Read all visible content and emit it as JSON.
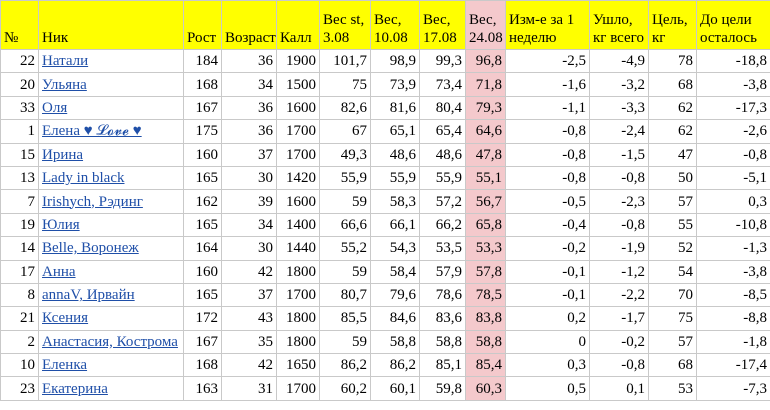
{
  "headers": {
    "num": "№",
    "nick": "Ник",
    "height": "Рост",
    "age": "Возраст",
    "cal": "Калл",
    "w_start": "Вес st, 3.08",
    "w_1008": "Вес, 10.08",
    "w_1708": "Вес, 17.08",
    "w_2408": "Вес, 24.08",
    "change_week": "Изм-е за 1 неделю",
    "lost_total": "Ушло, кг всего",
    "goal": "Цель, кг",
    "to_goal": "До цели осталось"
  },
  "rows": [
    {
      "num": "22",
      "nick": "Натали",
      "height": "184",
      "age": "36",
      "cal": "1900",
      "w_start": "101,7",
      "w_1008": "98,9",
      "w_1708": "99,3",
      "w_2408": "96,8",
      "change": "-2,5",
      "lost": "-4,9",
      "goal": "78",
      "to_goal": "-18,8"
    },
    {
      "num": "20",
      "nick": "Ульяна",
      "height": "168",
      "age": "34",
      "cal": "1500",
      "w_start": "75",
      "w_1008": "73,9",
      "w_1708": "73,4",
      "w_2408": "71,8",
      "change": "-1,6",
      "lost": "-3,2",
      "goal": "68",
      "to_goal": "-3,8"
    },
    {
      "num": "33",
      "nick": "Оля",
      "height": "167",
      "age": "36",
      "cal": "1600",
      "w_start": "82,6",
      "w_1008": "81,6",
      "w_1708": "80,4",
      "w_2408": "79,3",
      "change": "-1,1",
      "lost": "-3,3",
      "goal": "62",
      "to_goal": "-17,3"
    },
    {
      "num": "1",
      "nick": "Елена ♥ 𝓛𝓸𝓿𝓮 ♥",
      "height": "175",
      "age": "36",
      "cal": "1700",
      "w_start": "67",
      "w_1008": "65,1",
      "w_1708": "65,4",
      "w_2408": "64,6",
      "change": "-0,8",
      "lost": "-2,4",
      "goal": "62",
      "to_goal": "-2,6"
    },
    {
      "num": "15",
      "nick": "Ирина",
      "height": "160",
      "age": "37",
      "cal": "1700",
      "w_start": "49,3",
      "w_1008": "48,6",
      "w_1708": "48,6",
      "w_2408": "47,8",
      "change": "-0,8",
      "lost": "-1,5",
      "goal": "47",
      "to_goal": "-0,8"
    },
    {
      "num": "13",
      "nick": "Lady in black",
      "height": "165",
      "age": "30",
      "cal": "1420",
      "w_start": "55,9",
      "w_1008": "55,9",
      "w_1708": "55,9",
      "w_2408": "55,1",
      "change": "-0,8",
      "lost": "-0,8",
      "goal": "50",
      "to_goal": "-5,1"
    },
    {
      "num": "7",
      "nick": "Irishych, Рэдинг",
      "height": "162",
      "age": "39",
      "cal": "1600",
      "w_start": "59",
      "w_1008": "58,3",
      "w_1708": "57,2",
      "w_2408": "56,7",
      "change": "-0,5",
      "lost": "-2,3",
      "goal": "57",
      "to_goal": "0,3"
    },
    {
      "num": "19",
      "nick": "Юлия",
      "height": "165",
      "age": "34",
      "cal": "1400",
      "w_start": "66,6",
      "w_1008": "66,1",
      "w_1708": "66,2",
      "w_2408": "65,8",
      "change": "-0,4",
      "lost": "-0,8",
      "goal": "55",
      "to_goal": "-10,8"
    },
    {
      "num": "14",
      "nick": "Belle, Воронеж",
      "height": "164",
      "age": "30",
      "cal": "1440",
      "w_start": "55,2",
      "w_1008": "54,3",
      "w_1708": "53,5",
      "w_2408": "53,3",
      "change": "-0,2",
      "lost": "-1,9",
      "goal": "52",
      "to_goal": "-1,3"
    },
    {
      "num": "17",
      "nick": "Анна",
      "height": "160",
      "age": "42",
      "cal": "1800",
      "w_start": "59",
      "w_1008": "58,4",
      "w_1708": "57,9",
      "w_2408": "57,8",
      "change": "-0,1",
      "lost": "-1,2",
      "goal": "54",
      "to_goal": "-3,8"
    },
    {
      "num": "8",
      "nick": "annaV, Ирвайн",
      "height": "165",
      "age": "37",
      "cal": "1700",
      "w_start": "80,7",
      "w_1008": "79,6",
      "w_1708": "78,6",
      "w_2408": "78,5",
      "change": "-0,1",
      "lost": "-2,2",
      "goal": "70",
      "to_goal": "-8,5"
    },
    {
      "num": "21",
      "nick": "Ксения",
      "height": "172",
      "age": "43",
      "cal": "1800",
      "w_start": "85,5",
      "w_1008": "84,6",
      "w_1708": "83,6",
      "w_2408": "83,8",
      "change": "0,2",
      "lost": "-1,7",
      "goal": "75",
      "to_goal": "-8,8"
    },
    {
      "num": "2",
      "nick": "Анастасия, Кострома",
      "height": "167",
      "age": "35",
      "cal": "1800",
      "w_start": "59",
      "w_1008": "58,8",
      "w_1708": "58,8",
      "w_2408": "58,8",
      "change": "0",
      "lost": "-0,2",
      "goal": "57",
      "to_goal": "-1,8"
    },
    {
      "num": "10",
      "nick": "Еленка",
      "height": "168",
      "age": "42",
      "cal": "1650",
      "w_start": "86,2",
      "w_1008": "86,2",
      "w_1708": "85,1",
      "w_2408": "85,4",
      "change": "0,3",
      "lost": "-0,8",
      "goal": "68",
      "to_goal": "-17,4"
    },
    {
      "num": "23",
      "nick": "Екатерина",
      "height": "163",
      "age": "31",
      "cal": "1700",
      "w_start": "60,2",
      "w_1008": "60,1",
      "w_1708": "59,8",
      "w_2408": "60,3",
      "change": "0,5",
      "lost": "0,1",
      "goal": "53",
      "to_goal": "-7,3"
    }
  ]
}
